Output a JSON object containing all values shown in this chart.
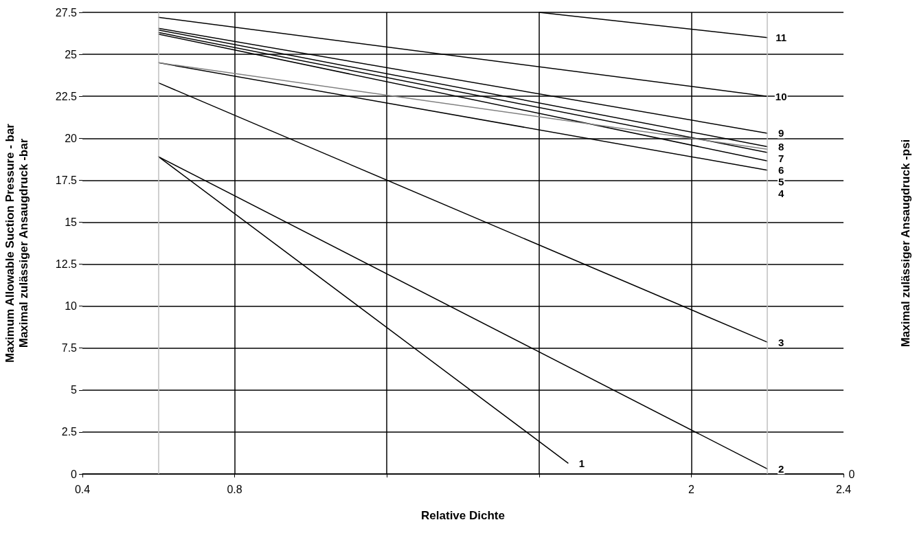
{
  "chart_data": {
    "type": "line",
    "xlabel": "Relative Dichte",
    "ylabel": "Maximal zulässiger Ansaugdruck -bar",
    "y2label": "Maximal zulässiger Ansaugdruck -psi",
    "xlim": [
      0.4,
      2.4
    ],
    "xticks": [
      0.4,
      0.8,
      {
        "value": 1.2,
        "label": null
      },
      {
        "value": 1.6,
        "label": null
      },
      2,
      2.4
    ],
    "ylim": [
      0,
      27.5
    ],
    "yticks": [
      0,
      2.5,
      5,
      7.5,
      10,
      12.5,
      15,
      17.5,
      20,
      22.5,
      25,
      27.5
    ],
    "grid": true,
    "legend": false,
    "marker": "none",
    "line_style": "solid",
    "series": [
      {
        "name": "1",
        "color": "#000000",
        "x": [
          0.6,
          1.676
        ],
        "values": [
          18.9,
          0.65
        ]
      },
      {
        "name": "2",
        "color": "#000000",
        "x": [
          0.6,
          2.2
        ],
        "values": [
          18.9,
          0.3
        ]
      },
      {
        "name": "3",
        "color": "#000000",
        "x": [
          0.6,
          2.2
        ],
        "values": [
          23.3,
          7.85
        ]
      },
      {
        "name": "4",
        "color": "#000000",
        "x": [
          0.6,
          2.2
        ],
        "values": [
          24.5,
          18.1
        ]
      },
      {
        "name": "5",
        "color": "#000000",
        "x": [
          0.6,
          2.2
        ],
        "values": [
          26.2,
          18.65
        ]
      },
      {
        "name": "6",
        "color": "#000000",
        "x": [
          0.6,
          2.2
        ],
        "values": [
          26.3,
          19.15
        ]
      },
      {
        "name": "7",
        "color": "#808080",
        "x": [
          0.6,
          2.2
        ],
        "values": [
          24.5,
          19.35
        ]
      },
      {
        "name": "8",
        "color": "#000000",
        "x": [
          0.6,
          2.2
        ],
        "values": [
          26.45,
          19.5
        ]
      },
      {
        "name": "9",
        "color": "#000000",
        "x": [
          0.6,
          2.2
        ],
        "values": [
          26.55,
          20.3
        ]
      },
      {
        "name": "10",
        "color": "#000000",
        "x": [
          0.6,
          2.2
        ],
        "values": [
          27.2,
          22.5
        ]
      },
      {
        "name": "11",
        "color": "#000000",
        "x": [
          1.6,
          2.2
        ],
        "values": [
          27.5,
          26.0
        ]
      }
    ],
    "ref_lines": [
      {
        "axis": "x",
        "value": 0.6,
        "color": "#bfbfbf"
      },
      {
        "axis": "x",
        "value": 2.2,
        "color": "#bfbfbf"
      }
    ],
    "annotations": [
      "Maximum Allowable Suction Pressure - bar",
      "0"
    ]
  }
}
